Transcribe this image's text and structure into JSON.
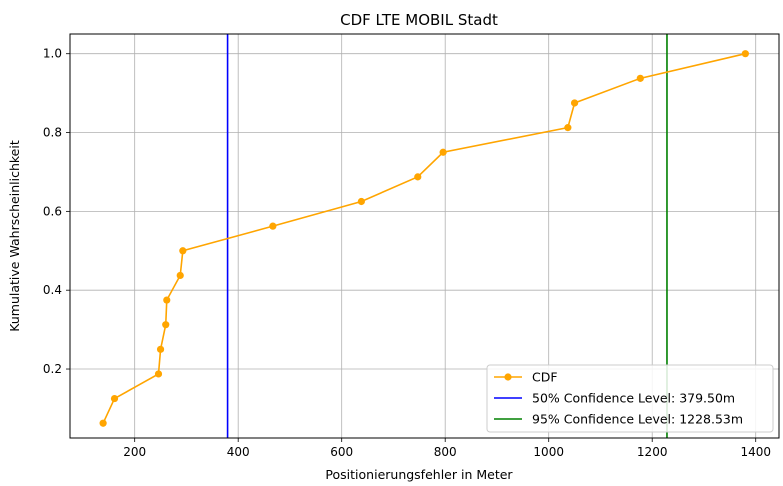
{
  "chart_data": {
    "type": "line",
    "title": "CDF LTE MOBIL Stadt",
    "xlabel": "Positionierungsfehler in Meter",
    "ylabel": "Kumulative Wahrscheinlichkeit",
    "xlim": [
      75,
      1445
    ],
    "ylim": [
      0.025,
      1.05
    ],
    "xticks": [
      200,
      400,
      600,
      800,
      1000,
      1200,
      1400
    ],
    "yticks": [
      0.2,
      0.4,
      0.6,
      0.8,
      1.0
    ],
    "xtick_labels": [
      "200",
      "400",
      "600",
      "800",
      "1000",
      "1200",
      "1400"
    ],
    "ytick_labels": [
      "0.2",
      "0.4",
      "0.6",
      "0.8",
      "1.0"
    ],
    "grid": true,
    "legend_position": "lower-right",
    "series": [
      {
        "name": "CDF",
        "color": "#ffa500",
        "marker": "circle",
        "x": [
          139,
          161,
          246,
          250,
          260,
          262,
          288,
          293,
          467,
          638,
          747,
          796,
          1037,
          1050,
          1177,
          1380
        ],
        "y": [
          0.0625,
          0.125,
          0.1875,
          0.25,
          0.3125,
          0.375,
          0.4375,
          0.5,
          0.5625,
          0.625,
          0.6875,
          0.75,
          0.8125,
          0.875,
          0.9375,
          1.0
        ]
      }
    ],
    "vlines": [
      {
        "name": "50% Confidence Level: 379.50m",
        "x": 379.5,
        "color": "#0000ff"
      },
      {
        "name": "95% Confidence Level: 1228.53m",
        "x": 1228.53,
        "color": "#008000"
      }
    ]
  }
}
